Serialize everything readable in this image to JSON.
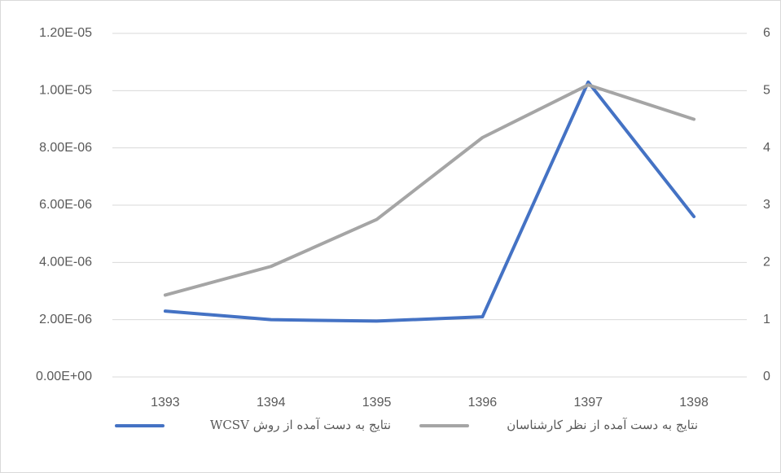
{
  "chart_data": {
    "type": "line",
    "categories": [
      "1393",
      "1394",
      "1395",
      "1396",
      "1397",
      "1398"
    ],
    "series": [
      {
        "name": "نتایج به دست آمده از روش WCSV",
        "color": "#4472c4",
        "values": [
          2.3e-06,
          2e-06,
          1.95e-06,
          2.1e-06,
          1.03e-05,
          5.6e-06
        ]
      },
      {
        "name": "نتایج به دست آمده از نظر کارشناسان",
        "color": "#a5a5a5",
        "axis": "y2",
        "values": [
          1.43,
          1.93,
          2.75,
          4.18,
          5.1,
          4.5
        ]
      }
    ],
    "ylim": [
      0,
      1.2e-05
    ],
    "yticks": [
      {
        "value": 0,
        "label": "0.00E+00"
      },
      {
        "value": 2e-06,
        "label": "2.00E-06"
      },
      {
        "value": 4e-06,
        "label": "4.00E-06"
      },
      {
        "value": 6e-06,
        "label": "6.00E-06"
      },
      {
        "value": 8e-06,
        "label": "8.00E-06"
      },
      {
        "value": 1e-05,
        "label": "1.00E-05"
      },
      {
        "value": 1.2e-05,
        "label": "1.20E-05"
      }
    ],
    "y2lim": [
      0,
      6
    ],
    "y2ticks": [
      0,
      1,
      2,
      3,
      4,
      5,
      6
    ],
    "grid": true,
    "legend": "bottom"
  }
}
